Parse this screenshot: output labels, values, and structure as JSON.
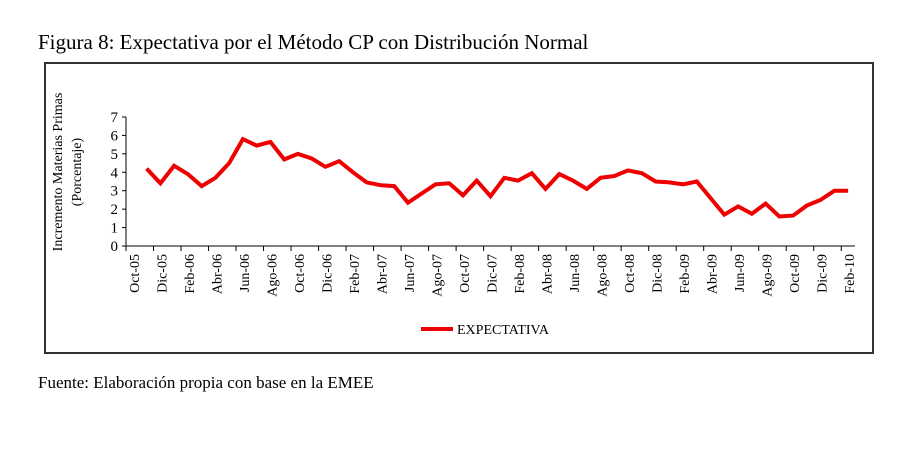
{
  "figure": {
    "title": "Figura 8: Expectativa por el Método CP con Distribución Normal",
    "source": "Fuente: Elaboración propia con base en la EMEE"
  },
  "chart_data": {
    "type": "line",
    "title": "Figura 8: Expectativa por el Método CP con Distribución Normal",
    "xlabel": "",
    "ylabel": "Incremento Materias Primas (Porcentaje)",
    "ylabel_lines": [
      "Incremento Materias Primas",
      "(Porcentaje)"
    ],
    "ylim": [
      0,
      7
    ],
    "yticks": [
      0,
      1,
      2,
      3,
      4,
      5,
      6,
      7
    ],
    "categories": [
      "Oct-05",
      "Nov-05",
      "Dic-05",
      "Ene-06",
      "Feb-06",
      "Mar-06",
      "Abr-06",
      "May-06",
      "Jun-06",
      "Jul-06",
      "Ago-06",
      "Sep-06",
      "Oct-06",
      "Nov-06",
      "Dic-06",
      "Ene-07",
      "Feb-07",
      "Mar-07",
      "Abr-07",
      "May-07",
      "Jun-07",
      "Jul-07",
      "Ago-07",
      "Sep-07",
      "Oct-07",
      "Nov-07",
      "Dic-07",
      "Ene-08",
      "Feb-08",
      "Mar-08",
      "Abr-08",
      "May-08",
      "Jun-08",
      "Jul-08",
      "Ago-08",
      "Sep-08",
      "Oct-08",
      "Nov-08",
      "Dic-08",
      "Ene-09",
      "Feb-09",
      "Mar-09",
      "Abr-09",
      "May-09",
      "Jun-09",
      "Jul-09",
      "Ago-09",
      "Sep-09",
      "Oct-09",
      "Nov-09",
      "Dic-09",
      "Ene-10",
      "Feb-10"
    ],
    "xtick_labels": [
      "Oct-05",
      "Dic-05",
      "Feb-06",
      "Abr-06",
      "Jun-06",
      "Ago-06",
      "Oct-06",
      "Dic-06",
      "Feb-07",
      "Abr-07",
      "Jun-07",
      "Ago-07",
      "Oct-07",
      "Dic-07",
      "Feb-08",
      "Abr-08",
      "Jun-08",
      "Ago-08",
      "Oct-08",
      "Dic-08",
      "Feb-09",
      "Abr-09",
      "Jun-09",
      "Ago-09",
      "Oct-09",
      "Dic-09",
      "Feb-10"
    ],
    "series": [
      {
        "name": "EXPECTATIVA",
        "color": "#ee0000",
        "values": [
          null,
          4.2,
          3.4,
          4.35,
          3.9,
          3.25,
          3.7,
          4.5,
          5.8,
          5.45,
          5.65,
          4.7,
          5.0,
          4.75,
          4.3,
          4.6,
          4.0,
          3.45,
          3.3,
          3.25,
          2.35,
          2.85,
          3.35,
          3.4,
          2.75,
          3.55,
          2.7,
          3.7,
          3.55,
          3.95,
          3.1,
          3.9,
          3.55,
          3.1,
          3.7,
          3.8,
          4.1,
          3.95,
          3.5,
          3.45,
          3.35,
          3.5,
          2.6,
          1.7,
          2.15,
          1.75,
          2.3,
          1.6,
          1.65,
          2.2,
          2.5,
          3.0,
          3.0
        ]
      }
    ],
    "legend": {
      "position": "bottom-center",
      "entries": [
        "EXPECTATIVA"
      ]
    },
    "grid": false
  }
}
